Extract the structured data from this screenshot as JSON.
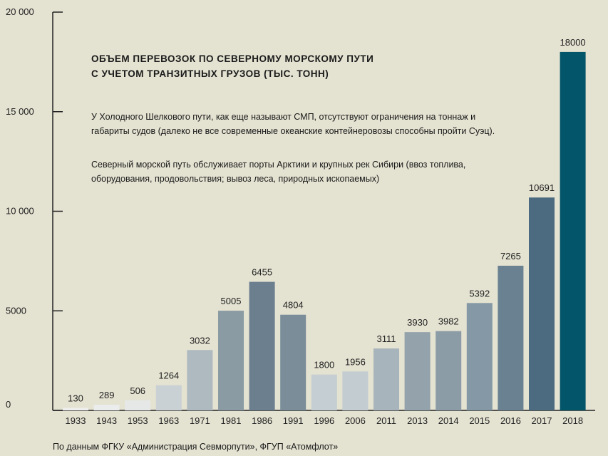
{
  "chart_data": {
    "type": "bar",
    "title_lines": [
      "ОБЪЕМ ПЕРЕВОЗОК ПО СЕВЕРНОМУ МОРСКОМУ ПУТИ",
      "С УЧЕТОМ ТРАНЗИТНЫХ ГРУЗОВ (ТЫС. ТОНН)"
    ],
    "categories": [
      "1933",
      "1943",
      "1953",
      "1963",
      "1971",
      "1981",
      "1986",
      "1991",
      "1996",
      "2006",
      "2011",
      "2013",
      "2014",
      "2015",
      "2016",
      "2017",
      "2018"
    ],
    "values": [
      130,
      289,
      506,
      1264,
      3032,
      5005,
      6455,
      4804,
      1800,
      1956,
      3111,
      3930,
      3982,
      5392,
      7265,
      10691,
      18000
    ],
    "value_labels": [
      "130",
      "289",
      "506",
      "1264",
      "3032",
      "5005",
      "6455",
      "4804",
      "1800",
      "1956",
      "3111",
      "3930",
      "3982",
      "5392",
      "7265",
      "10691",
      "18000"
    ],
    "bar_colors": [
      "#eeeeee",
      "#ebecec",
      "#e6e8e8",
      "#c9d1d4",
      "#aeb9c0",
      "#8a9ba4",
      "#6b7f8f",
      "#7a8d99",
      "#c5ced3",
      "#c3ccd1",
      "#a8b4bb",
      "#93a2ab",
      "#8c9ca6",
      "#8499a5",
      "#6a8192",
      "#4d6b80",
      "#03566a"
    ],
    "ylim": [
      0,
      20000
    ],
    "yticks": [
      0,
      5000,
      10000,
      15000,
      20000
    ],
    "ytick_labels": [
      "0",
      "5000",
      "10 000",
      "15 000",
      "20 000"
    ],
    "grid": false
  },
  "description": [
    "У Холодного Шелкового пути, как еще называют СМП, отсутствуют ограничения на тоннаж и",
    "габариты судов (далеко не все современные океанские контейнеровозы способны пройти Суэц).",
    "Северный морской путь обслуживает порты Арктики и крупных рек Сибири (ввоз топлива,",
    "оборудования, продовольствия; вывоз леса, природных ископаемых)"
  ],
  "source": "По данным ФГКУ «Администрация Севморпути», ФГУП «Атомфлот»"
}
